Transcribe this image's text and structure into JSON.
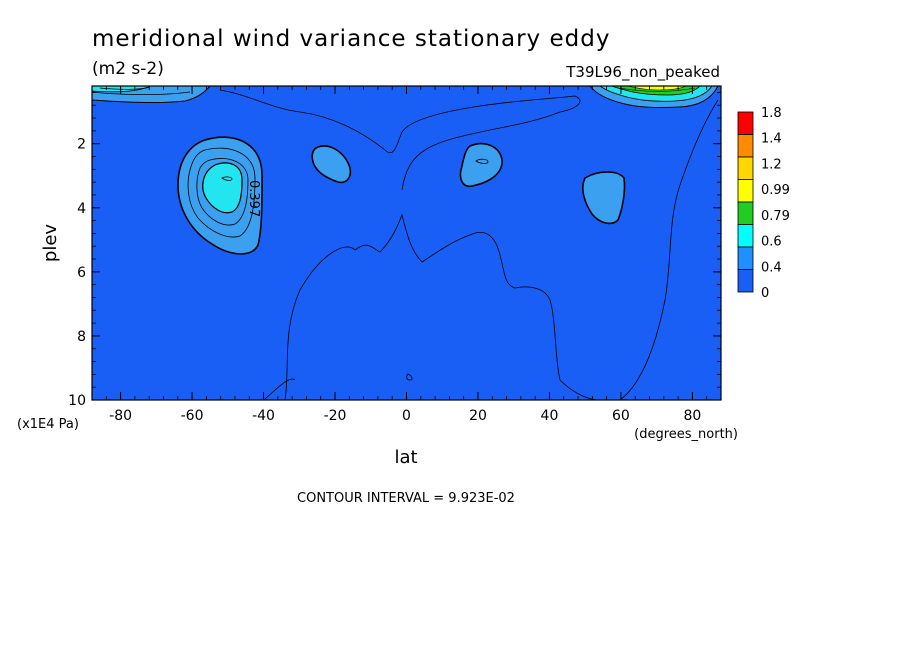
{
  "chart_data": {
    "type": "heatmap",
    "title": "meridional wind variance  stationary eddy",
    "units": "(m2 s-2)",
    "dataset": "T39L96_non_peaked",
    "xlabel": "lat",
    "x_units": "(degrees_north)",
    "ylabel": "plev",
    "y_units": "(x1E4 Pa)",
    "x_range": [
      -88,
      88
    ],
    "y_range": [
      10,
      0.2
    ],
    "x_ticks": [
      "-80",
      "-60",
      "-40",
      "-20",
      "0",
      "20",
      "40",
      "60",
      "80"
    ],
    "y_ticks": [
      "2",
      "4",
      "6",
      "8",
      "10"
    ],
    "contour_interval_text": "CONTOUR INTERVAL = 9.923E-02",
    "contour_label": "0.397",
    "colorbar": {
      "labels": [
        "1.8",
        "1.4",
        "1.2",
        "0.99",
        "0.79",
        "0.6",
        "0.4",
        "0"
      ],
      "colors": [
        "#ff0000",
        "#ff8c00",
        "#ffd700",
        "#ffff00",
        "#22cc22",
        "#00ffff",
        "#1e90ff",
        "#1a5ff5"
      ]
    },
    "features": [
      {
        "name": "sh-max",
        "lat": -50,
        "plev": 3.1,
        "value": 0.7
      },
      {
        "name": "sh-20",
        "lat": -22,
        "plev": 2.5,
        "value": 0.42
      },
      {
        "name": "nh-20",
        "lat": 22,
        "plev": 2.6,
        "value": 0.45
      },
      {
        "name": "nh-55",
        "lat": 55,
        "plev": 3.7,
        "value": 0.45
      },
      {
        "name": "top-left-jet",
        "lat": -80,
        "plev": 0.3,
        "value": 1.0
      },
      {
        "name": "top-right-jet",
        "lat": 70,
        "plev": 0.4,
        "value": 1.4
      }
    ]
  }
}
